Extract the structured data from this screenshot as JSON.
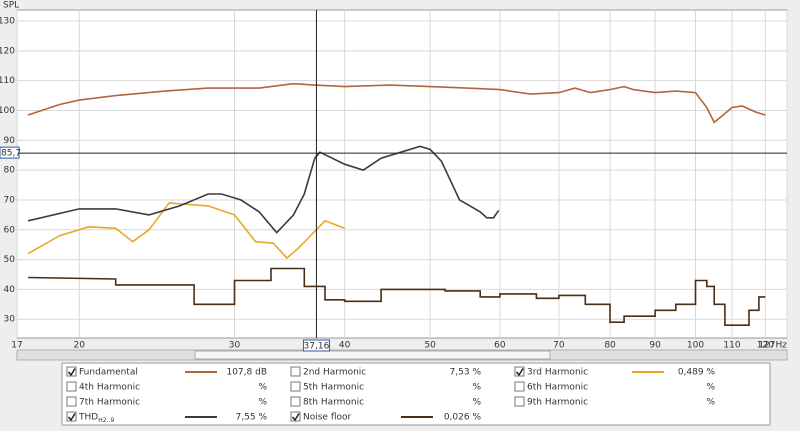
{
  "chart_data": {
    "type": "line",
    "y_label": "SPL",
    "xscale": "log",
    "grid": true,
    "xlim": [
      17,
      127
    ],
    "ylim": [
      23.7,
      133.7
    ],
    "xticks": [
      17,
      20,
      30,
      40,
      50,
      60,
      70,
      80,
      90,
      100,
      110,
      120,
      {
        "value": 127,
        "label": "127Hz"
      }
    ],
    "yticks": [
      30,
      40,
      50,
      60,
      70,
      80,
      90,
      100,
      110,
      120,
      130
    ],
    "cursor": {
      "x": {
        "value": 37.16,
        "label": "37,16"
      },
      "y": {
        "value": 85.7,
        "label": "85,7"
      }
    },
    "series": [
      {
        "name": "Fundamental",
        "color": "#b0663c",
        "checked": true,
        "readout": "107,8 dB",
        "x": [
          17.5,
          19,
          20,
          22,
          25,
          28,
          32,
          35,
          37,
          40,
          45,
          50,
          55,
          60,
          65,
          70,
          73,
          76,
          80,
          83,
          85,
          90,
          95,
          100,
          103,
          105,
          107,
          110,
          113,
          117,
          120
        ],
        "values": [
          98.5,
          102,
          103.5,
          105,
          106.5,
          107.5,
          107.5,
          109,
          108.5,
          108,
          108.5,
          108,
          107.5,
          107,
          105.5,
          106,
          107.5,
          106,
          107,
          108,
          107,
          106,
          106.5,
          106,
          101,
          96,
          98,
          101,
          101.5,
          99.5,
          98.5
        ]
      },
      {
        "name": "2nd Harmonic",
        "color": "#b03a3a",
        "checked": false,
        "readout": "7,53 %"
      },
      {
        "name": "3rd Harmonic",
        "color": "#e8a825",
        "checked": true,
        "readout": "0,489 %",
        "x": [
          17.5,
          19,
          20.5,
          22,
          23,
          24,
          25.3,
          28,
          30,
          31.7,
          33.2,
          34.4,
          35.5,
          38,
          40
        ],
        "values": [
          52,
          58,
          61,
          60.5,
          56,
          60,
          69,
          68,
          65,
          56,
          55.5,
          50.5,
          54,
          63,
          60.5
        ]
      },
      {
        "name": "4th Harmonic",
        "color": "#d8a820",
        "checked": false,
        "readout": "%"
      },
      {
        "name": "5th Harmonic",
        "color": "#2e9a2e",
        "checked": false,
        "readout": "%"
      },
      {
        "name": "6th Harmonic",
        "color": "#3c5ea8",
        "checked": false,
        "readout": "%"
      },
      {
        "name": "7th Harmonic",
        "color": "#a040c0",
        "checked": false,
        "readout": "%"
      },
      {
        "name": "8th Harmonic",
        "color": "#7a7a7a",
        "checked": false,
        "readout": "%"
      },
      {
        "name": "9th Harmonic",
        "color": "#2a8aa0",
        "checked": false,
        "readout": "%"
      },
      {
        "name": "THD",
        "subscript": "H2..9",
        "color": "#3a3a44",
        "checked": true,
        "readout": "7,55 %",
        "x": [
          17.5,
          20,
          22,
          24,
          26,
          28,
          29,
          30.5,
          32,
          33.5,
          35,
          36,
          37,
          37.5,
          40,
          42,
          44,
          48.7,
          50,
          51.5,
          54,
          55.5,
          57,
          58,
          59,
          59.8
        ],
        "values": [
          63,
          67,
          67,
          65,
          68,
          72,
          72,
          70,
          66,
          59,
          65,
          72,
          84,
          86,
          82,
          80,
          84,
          88,
          87,
          83,
          70,
          68,
          66,
          64,
          64,
          66.5
        ]
      },
      {
        "name": "Noise floor",
        "color": "#4a2e14",
        "checked": true,
        "readout": "0,026 %",
        "x": [
          17.5,
          22,
          22,
          27,
          27,
          30,
          30,
          33,
          33,
          36,
          36,
          38,
          38,
          40,
          40,
          44,
          44,
          52,
          52,
          57,
          57,
          60,
          60,
          66,
          66,
          70,
          70,
          75,
          75,
          80,
          80,
          83,
          83,
          90,
          90,
          95,
          95,
          100,
          100,
          103,
          103,
          105,
          105,
          108,
          108,
          115,
          115,
          118,
          118,
          120
        ],
        "values": [
          44,
          43.5,
          41.5,
          41.5,
          35,
          35,
          43,
          43,
          47,
          47,
          41,
          41,
          36.5,
          36.5,
          36,
          36,
          40,
          40,
          39.5,
          39.5,
          37.5,
          37.5,
          38.5,
          38.5,
          37,
          37,
          38,
          38,
          35,
          35,
          29,
          29,
          31,
          31,
          33,
          33,
          35,
          35,
          43,
          43,
          41,
          41,
          35,
          35,
          28,
          28,
          33,
          33,
          37.5,
          37.5
        ]
      }
    ]
  }
}
